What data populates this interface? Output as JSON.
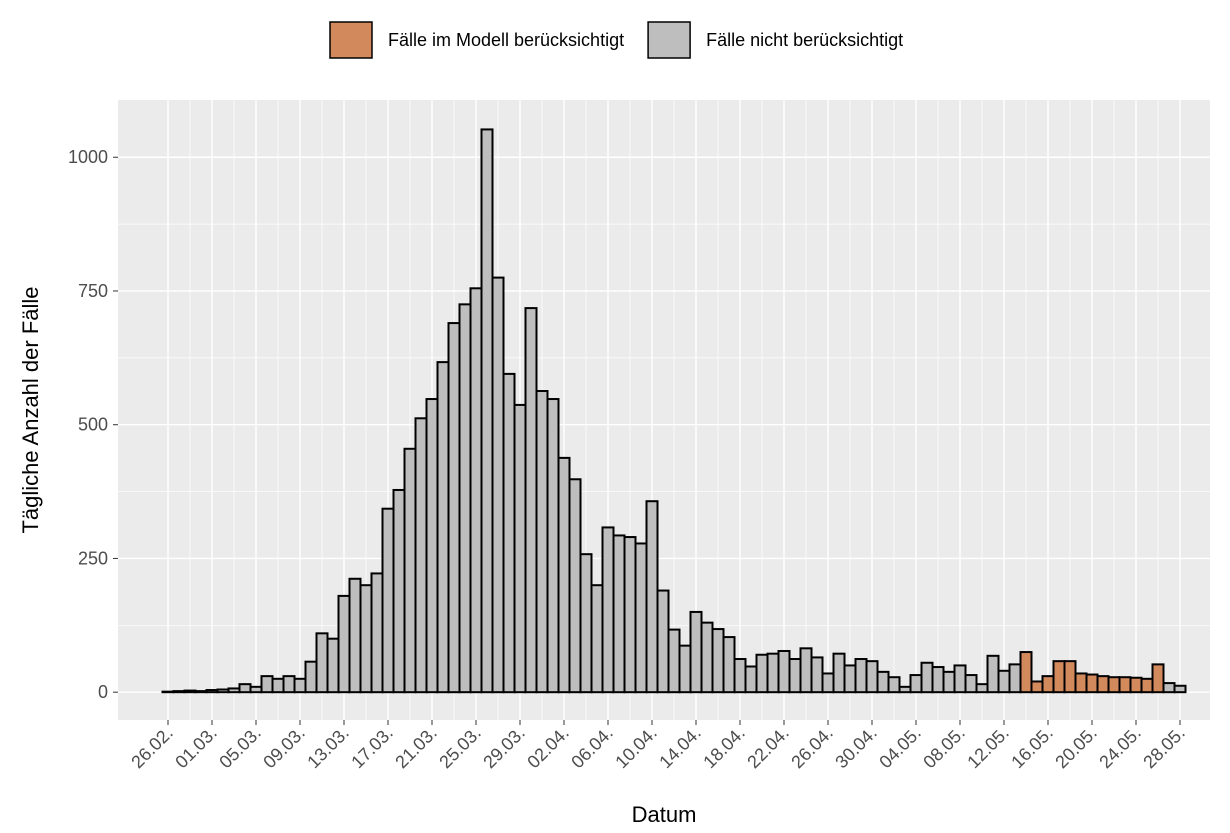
{
  "chart_data": {
    "type": "bar",
    "x_label": "Datum",
    "y_label": "Tägliche Anzahl der Fälle",
    "categories": [
      "26.02.",
      null,
      null,
      null,
      "01.03.",
      null,
      null,
      null,
      "05.03.",
      null,
      null,
      null,
      "09.03.",
      null,
      null,
      null,
      "13.03.",
      null,
      null,
      null,
      "17.03.",
      null,
      null,
      null,
      "21.03.",
      null,
      null,
      null,
      "25.03.",
      null,
      null,
      null,
      "29.03.",
      null,
      null,
      null,
      "02.04.",
      null,
      null,
      null,
      "06.04.",
      null,
      null,
      null,
      "10.04.",
      null,
      null,
      null,
      "14.04.",
      null,
      null,
      null,
      "18.04.",
      null,
      null,
      null,
      "22.04.",
      null,
      null,
      null,
      "26.04.",
      null,
      null,
      null,
      "30.04.",
      null,
      null,
      null,
      "04.05.",
      null,
      null,
      null,
      "08.05.",
      null,
      null,
      null,
      "12.05.",
      null,
      null,
      null,
      "16.05.",
      null,
      null,
      null,
      "20.05.",
      null,
      null,
      null,
      "24.05.",
      null,
      null,
      null,
      "28.05."
    ],
    "series": [
      {
        "name": "Fälle im Modell berücksichtigt",
        "color": "#d2895c",
        "values": [
          null,
          null,
          null,
          null,
          null,
          null,
          null,
          null,
          null,
          null,
          null,
          null,
          null,
          null,
          null,
          null,
          null,
          null,
          null,
          null,
          null,
          null,
          null,
          null,
          null,
          null,
          null,
          null,
          null,
          null,
          null,
          null,
          null,
          null,
          null,
          null,
          null,
          null,
          null,
          null,
          null,
          null,
          null,
          null,
          null,
          null,
          null,
          null,
          null,
          null,
          null,
          null,
          null,
          null,
          null,
          null,
          null,
          null,
          null,
          null,
          null,
          null,
          null,
          null,
          null,
          null,
          null,
          null,
          null,
          null,
          null,
          null,
          null,
          null,
          null,
          null,
          null,
          null,
          75,
          20,
          30,
          58,
          58,
          35,
          33,
          30,
          28,
          28,
          27,
          25,
          52,
          null,
          null
        ]
      },
      {
        "name": "Fälle nicht berücksichtigt",
        "color": "#bebebe",
        "values": [
          1,
          2,
          3,
          2,
          4,
          5,
          7,
          15,
          10,
          30,
          25,
          30,
          25,
          57,
          110,
          100,
          180,
          212,
          200,
          222,
          343,
          378,
          455,
          512,
          548,
          617,
          690,
          725,
          755,
          1052,
          775,
          595,
          537,
          718,
          563,
          548,
          438,
          398,
          258,
          200,
          308,
          293,
          290,
          278,
          357,
          190,
          117,
          87,
          150,
          130,
          118,
          103,
          62,
          48,
          70,
          72,
          77,
          62,
          82,
          65,
          35,
          72,
          50,
          62,
          58,
          38,
          28,
          10,
          32,
          55,
          47,
          38,
          50,
          32,
          15,
          68,
          40,
          52,
          null,
          null,
          null,
          null,
          null,
          null,
          null,
          null,
          null,
          null,
          null,
          null,
          null,
          17,
          12
        ]
      }
    ],
    "ylim": [
      -52,
      1107
    ],
    "yticks": [
      0,
      250,
      500,
      750,
      1000
    ],
    "grid": true,
    "legend": "top"
  }
}
